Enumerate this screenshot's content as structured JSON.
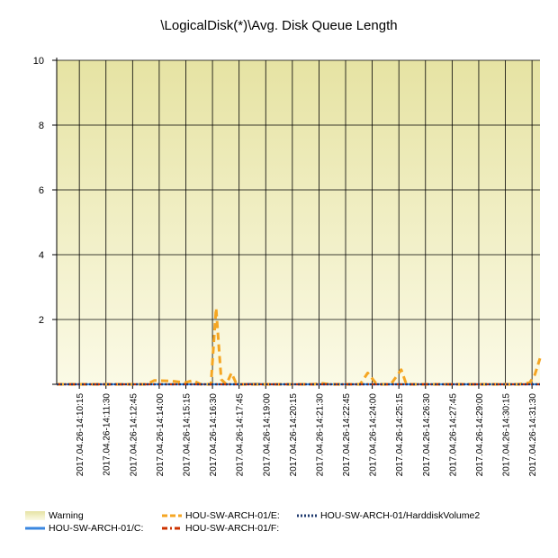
{
  "chart_data": {
    "type": "line",
    "title": "\\LogicalDisk(*)\\Avg. Disk Queue Length",
    "xlabel": "",
    "ylabel": "",
    "ylim": [
      0,
      10
    ],
    "yticks": [
      {
        "value": 0,
        "label": ""
      },
      {
        "value": 2,
        "label": "2"
      },
      {
        "value": 4,
        "label": "4"
      },
      {
        "value": 6,
        "label": "6"
      },
      {
        "value": 8,
        "label": "8"
      },
      {
        "value": 10,
        "label": "10"
      }
    ],
    "xlim_minutes": [
      0,
      188
    ],
    "xticks": [
      {
        "label": "2017.04.26-14:10:15"
      },
      {
        "label": "2017.04.26-14:11:30"
      },
      {
        "label": "2017.04.26-14:12:45"
      },
      {
        "label": "2017.04.26-14:14:00"
      },
      {
        "label": "2017.04.26-14:15:15"
      },
      {
        "label": "2017.04.26-14:16:30"
      },
      {
        "label": "2017.04.26-14:17:45"
      },
      {
        "label": "2017.04.26-14:19:00"
      },
      {
        "label": "2017.04.26-14:20:15"
      },
      {
        "label": "2017.04.26-14:21:30"
      },
      {
        "label": "2017.04.26-14:22:45"
      },
      {
        "label": "2017.04.26-14:24:00"
      },
      {
        "label": "2017.04.26-14:25:15"
      },
      {
        "label": "2017.04.26-14:26:30"
      },
      {
        "label": "2017.04.26-14:27:45"
      },
      {
        "label": "2017.04.26-14:29:00"
      },
      {
        "label": "2017.04.26-14:30:15"
      },
      {
        "label": "2017.04.26-14:31:30"
      }
    ],
    "grid": true,
    "legend_position": "bottom",
    "warning_band": {
      "name": "Warning",
      "from": 0,
      "to": 10,
      "color_top": "#e6e3a3",
      "color_bottom": "#fbfae6"
    },
    "series": [
      {
        "name": "HOU-SW-ARCH-01/C:",
        "color": "#3a87e0",
        "style": "solid",
        "values": [
          [
            0,
            0
          ],
          [
            40,
            0
          ],
          [
            70,
            0
          ],
          [
            78,
            0.02
          ],
          [
            80,
            0
          ],
          [
            120,
            0
          ],
          [
            188,
            0
          ]
        ]
      },
      {
        "name": "HOU-SW-ARCH-01/E:",
        "color": "#f5a623",
        "style": "dashed",
        "values": [
          [
            0,
            0
          ],
          [
            35,
            0
          ],
          [
            38,
            0.12
          ],
          [
            45,
            0.1
          ],
          [
            50,
            0.05
          ],
          [
            53,
            0.12
          ],
          [
            56,
            0
          ],
          [
            60,
            0
          ],
          [
            62,
            2.35
          ],
          [
            64,
            0.15
          ],
          [
            66,
            0
          ],
          [
            68,
            0.35
          ],
          [
            70,
            0
          ],
          [
            100,
            0
          ],
          [
            103,
            0.03
          ],
          [
            106,
            0
          ],
          [
            118,
            0
          ],
          [
            121,
            0.35
          ],
          [
            124,
            0.05
          ],
          [
            126,
            0
          ],
          [
            130,
            0
          ],
          [
            134,
            0.45
          ],
          [
            136,
            0
          ],
          [
            180,
            0
          ],
          [
            184,
            0.05
          ],
          [
            186,
            0.3
          ],
          [
            188,
            0.8
          ]
        ]
      },
      {
        "name": "HOU-SW-ARCH-01/F:",
        "color": "#cc3300",
        "style": "dashdot",
        "values": [
          [
            0,
            0
          ],
          [
            188,
            0
          ]
        ]
      },
      {
        "name": "HOU-SW-ARCH-01/HarddiskVolume2",
        "color": "#1f3a6e",
        "style": "dotted",
        "values": [
          [
            0,
            0
          ],
          [
            188,
            0
          ]
        ]
      }
    ]
  }
}
